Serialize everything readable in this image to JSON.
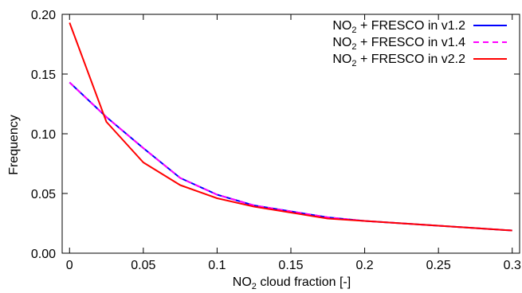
{
  "chart_data": {
    "type": "line",
    "xlabel_main": "NO",
    "xlabel_sub": "2",
    "xlabel_rest": " cloud fraction  [-]",
    "ylabel": "Frequency",
    "xlim": [
      -0.005,
      0.305
    ],
    "ylim": [
      0,
      0.2
    ],
    "x_ticks": [
      0,
      0.05,
      0.1,
      0.15,
      0.2,
      0.25,
      0.3
    ],
    "x_tick_labels": [
      "0",
      "0.05",
      "0.1",
      "0.15",
      "0.2",
      "0.25",
      "0.3"
    ],
    "y_ticks": [
      0,
      0.05,
      0.1,
      0.15,
      0.2
    ],
    "y_tick_labels": [
      "0.00",
      "0.05",
      "0.10",
      "0.15",
      "0.20"
    ],
    "grid": false,
    "legend_placement": "top-right",
    "x": [
      0,
      0.025,
      0.05,
      0.075,
      0.1,
      0.125,
      0.15,
      0.175,
      0.2,
      0.225,
      0.25,
      0.275,
      0.3
    ],
    "series": [
      {
        "legend_prefix": "NO",
        "legend_sub": "2",
        "legend_suffix": " + FRESCO in v1.2",
        "color": "#0000ff",
        "dashed": false,
        "values": [
          0.143,
          0.114,
          0.088,
          0.063,
          0.049,
          0.04,
          0.035,
          0.03,
          0.027,
          0.025,
          0.023,
          0.021,
          0.019
        ]
      },
      {
        "legend_prefix": "NO",
        "legend_sub": "2",
        "legend_suffix": " + FRESCO in v1.4",
        "color": "#ff00ff",
        "dashed": true,
        "values": [
          0.143,
          0.114,
          0.088,
          0.063,
          0.049,
          0.04,
          0.035,
          0.03,
          0.027,
          0.025,
          0.023,
          0.021,
          0.019
        ]
      },
      {
        "legend_prefix": "NO",
        "legend_sub": "2",
        "legend_suffix": " + FRESCO in v2.2",
        "color": "#ff0000",
        "dashed": false,
        "values": [
          0.193,
          0.11,
          0.076,
          0.057,
          0.046,
          0.039,
          0.034,
          0.029,
          0.027,
          0.025,
          0.023,
          0.021,
          0.019
        ]
      }
    ]
  }
}
